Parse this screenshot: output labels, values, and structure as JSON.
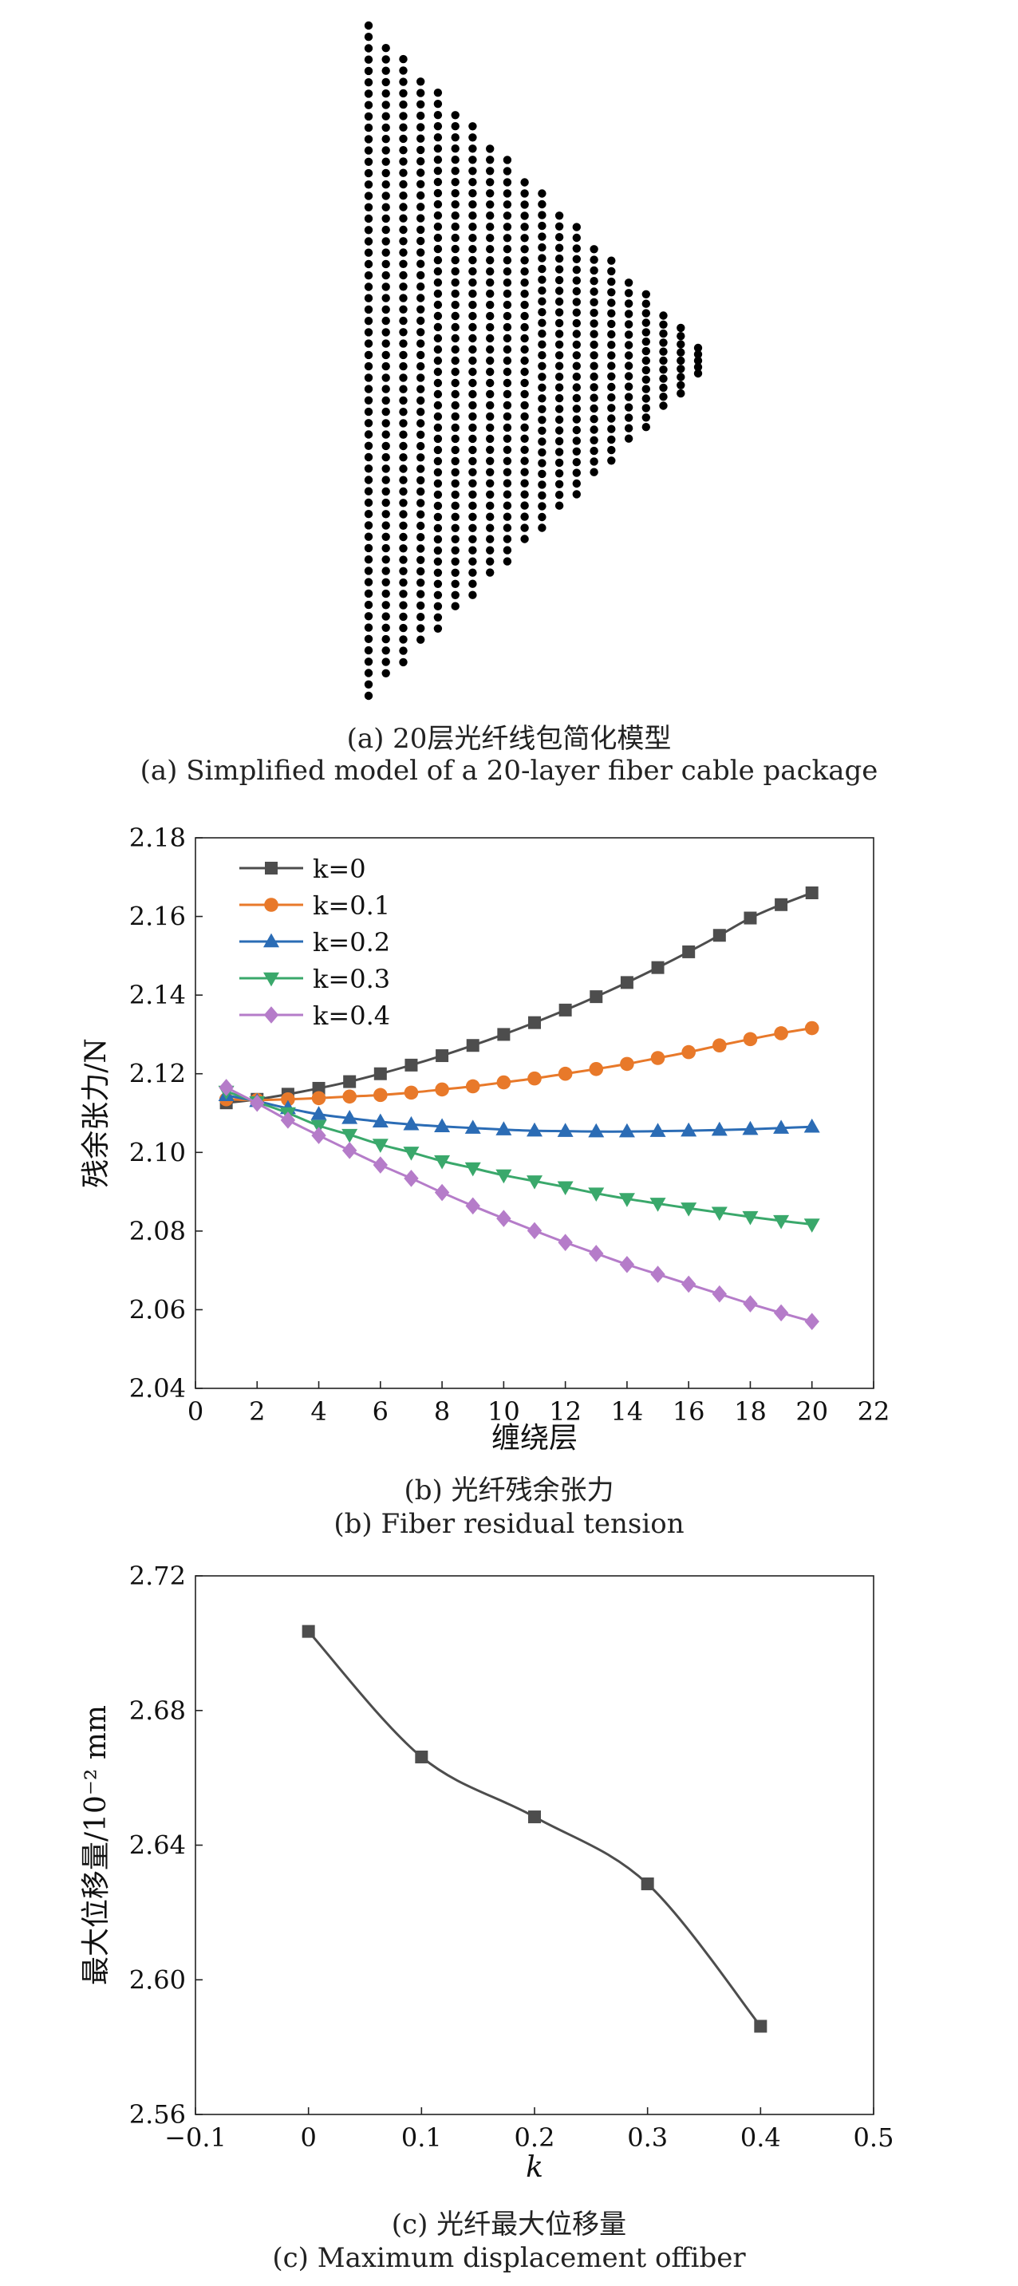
{
  "panel_a": {
    "caption_cn": "(a) 20层光纤线包简化模型",
    "caption_en": "(a) Simplified model of a 20-layer fiber cable package"
  },
  "panel_b": {
    "caption_cn": "(b) 光纤残余张力",
    "caption_en": "(b) Fiber residual tension"
  },
  "panel_c": {
    "caption_cn": "(c) 光纤最大位移量",
    "caption_en": "(c) Maximum displacement offiber"
  },
  "chart_data": [
    {
      "type": "scatter",
      "title": "",
      "layers": 20,
      "colors": {
        "fill": "#000000"
      }
    },
    {
      "type": "line",
      "xlabel": "缠绕层",
      "ylabel": "残余张力/N",
      "xlim": [
        0,
        22
      ],
      "ylim": [
        2.04,
        2.18
      ],
      "xticks": [
        "0",
        "2",
        "4",
        "6",
        "8",
        "10",
        "12",
        "14",
        "16",
        "18",
        "20",
        "22"
      ],
      "yticks": [
        "2.04",
        "2.06",
        "2.08",
        "2.10",
        "2.12",
        "2.14",
        "2.16",
        "2.18"
      ],
      "legend_position": "top-left",
      "x": [
        1,
        2,
        3,
        4,
        5,
        6,
        7,
        8,
        9,
        10,
        11,
        12,
        13,
        14,
        15,
        16,
        17,
        18,
        19,
        20
      ],
      "series": [
        {
          "name": "k=0",
          "color": "#4d4d4d",
          "marker": "square",
          "values": [
            2.1126,
            2.1135,
            2.1148,
            2.1163,
            2.118,
            2.12,
            2.1222,
            2.1246,
            2.1272,
            2.13,
            2.133,
            2.1362,
            2.1396,
            2.1432,
            2.147,
            2.151,
            2.1552,
            2.1596,
            2.163,
            2.166
          ]
        },
        {
          "name": "k=0.1",
          "color": "#e8792a",
          "marker": "circle",
          "values": [
            2.1135,
            2.1133,
            2.1135,
            2.1138,
            2.1142,
            2.1146,
            2.1152,
            2.116,
            2.1168,
            2.1178,
            2.1188,
            2.12,
            2.1212,
            2.1225,
            2.124,
            2.1255,
            2.1272,
            2.1288,
            2.1303,
            2.1316
          ]
        },
        {
          "name": "k=0.2",
          "color": "#2b6cb5",
          "marker": "triangle-up",
          "values": [
            2.1145,
            2.113,
            2.1112,
            2.1097,
            2.1087,
            2.1078,
            2.1071,
            2.1066,
            2.1062,
            2.1058,
            2.1055,
            2.1054,
            2.1053,
            2.1053,
            2.1054,
            2.1055,
            2.1057,
            2.1059,
            2.1062,
            2.1065
          ]
        },
        {
          "name": "k=0.3",
          "color": "#3aa86b",
          "marker": "triangle-down",
          "values": [
            2.1155,
            2.1128,
            2.11,
            2.1068,
            2.1045,
            2.102,
            2.1,
            2.0978,
            2.096,
            2.0942,
            2.0927,
            2.0912,
            2.0896,
            2.0882,
            2.087,
            2.0858,
            2.0847,
            2.0836,
            2.0826,
            2.0817
          ]
        },
        {
          "name": "k=0.4",
          "color": "#b57cc9",
          "marker": "diamond",
          "values": [
            2.1165,
            2.1125,
            2.1082,
            2.1043,
            2.1005,
            2.0968,
            2.0934,
            2.0898,
            2.0864,
            2.0832,
            2.0801,
            2.0771,
            2.0743,
            2.0715,
            2.069,
            2.0665,
            2.064,
            2.0615,
            2.0592,
            2.057
          ]
        }
      ]
    },
    {
      "type": "line",
      "xlabel": "k",
      "ylabel": "最大位移量/10⁻² mm",
      "xlim": [
        -0.1,
        0.5
      ],
      "ylim": [
        2.56,
        2.72
      ],
      "xticks": [
        "−0.1",
        "0",
        "0.1",
        "0.2",
        "0.3",
        "0.4",
        "0.5"
      ],
      "yticks": [
        "2.56",
        "2.60",
        "2.64",
        "2.68",
        "2.72"
      ],
      "x": [
        0,
        0.1,
        0.2,
        0.3,
        0.4
      ],
      "series": [
        {
          "color": "#4d4d4d",
          "marker": "square",
          "values": [
            2.7035,
            2.6662,
            2.6484,
            2.6285,
            2.5862
          ]
        }
      ]
    }
  ]
}
